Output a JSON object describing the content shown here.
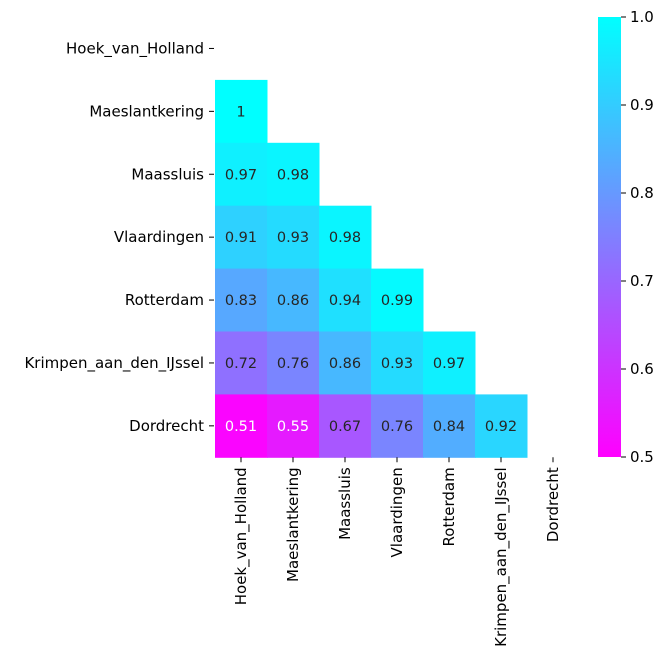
{
  "chart_data": {
    "type": "heatmap",
    "title": "",
    "xlabel": "",
    "ylabel": "",
    "mask": "upper-triangle",
    "rows": [
      "Hoek_van_Holland",
      "Maeslantkering",
      "Maassluis",
      "Vlaardingen",
      "Rotterdam",
      "Krimpen_aan_den_IJssel",
      "Dordrecht"
    ],
    "columns": [
      "Hoek_van_Holland",
      "Maeslantkering",
      "Maassluis",
      "Vlaardingen",
      "Rotterdam",
      "Krimpen_aan_den_IJssel",
      "Dordrecht"
    ],
    "values": [
      [
        null,
        null,
        null,
        null,
        null,
        null,
        null
      ],
      [
        1,
        null,
        null,
        null,
        null,
        null,
        null
      ],
      [
        0.97,
        0.98,
        null,
        null,
        null,
        null,
        null
      ],
      [
        0.91,
        0.93,
        0.98,
        null,
        null,
        null,
        null
      ],
      [
        0.83,
        0.86,
        0.94,
        0.99,
        null,
        null,
        null
      ],
      [
        0.72,
        0.76,
        0.86,
        0.93,
        0.97,
        null,
        null
      ],
      [
        0.51,
        0.55,
        0.67,
        0.76,
        0.84,
        0.92,
        null
      ]
    ],
    "annotations": [
      [
        "",
        "",
        "",
        "",
        "",
        "",
        ""
      ],
      [
        "1",
        "",
        "",
        "",
        "",
        "",
        ""
      ],
      [
        "0.97",
        "0.98",
        "",
        "",
        "",
        "",
        ""
      ],
      [
        "0.91",
        "0.93",
        "0.98",
        "",
        "",
        "",
        ""
      ],
      [
        "0.83",
        "0.86",
        "0.94",
        "0.99",
        "",
        "",
        ""
      ],
      [
        "0.72",
        "0.76",
        "0.86",
        "0.93",
        "0.97",
        "",
        ""
      ],
      [
        "0.51",
        "0.55",
        "0.67",
        "0.76",
        "0.84",
        "0.92",
        ""
      ]
    ],
    "colormap": "cool",
    "colormap_start": "#ff00ff",
    "colormap_end": "#00ffff",
    "vmin": 0.5,
    "vmax": 1.0,
    "colorbar": {
      "ticks": [
        0.5,
        0.6,
        0.7,
        0.8,
        0.9,
        1.0
      ],
      "tick_labels": [
        "0.5",
        "0.6",
        "0.7",
        "0.8",
        "0.9",
        "1.0"
      ]
    },
    "annotation_colors": {
      "dark_text": "#262626",
      "light_text": "#ffffff"
    },
    "grid": false,
    "legend": "colorbar-right"
  }
}
